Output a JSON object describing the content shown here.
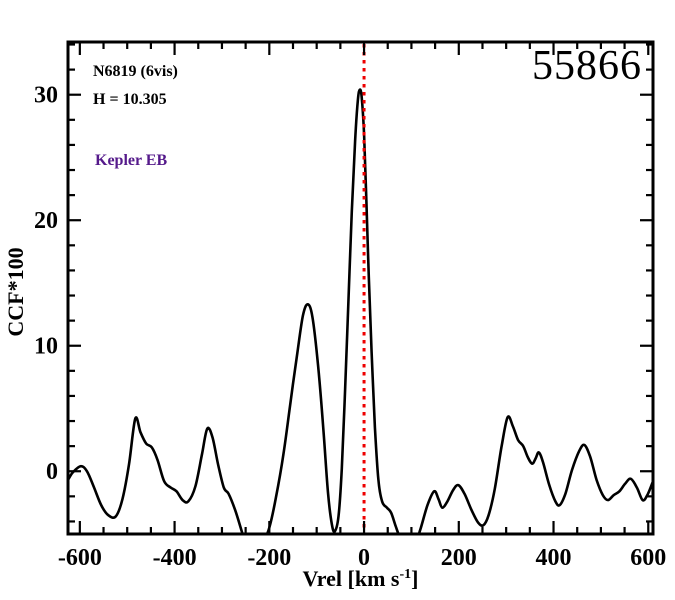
{
  "figure": {
    "background": "#ffffff",
    "frame_color": "#000000"
  },
  "annotations": {
    "target": "N6819 (6vis)",
    "h_mag": "H = 10.305",
    "classification": "Kepler EB",
    "classification_color": "#551a8b",
    "mjd": "55866"
  },
  "chart_data": {
    "type": "line",
    "title": "",
    "xlabel_main": "Vrel [km s",
    "xlabel_sup": "-1",
    "xlabel_end": "]",
    "ylabel": "CCF*100",
    "xlim": [
      -625,
      610
    ],
    "ylim": [
      -5,
      34.2
    ],
    "grid": false,
    "legend": "none",
    "x_major_ticks": [
      -600,
      -400,
      -200,
      0,
      200,
      400,
      600
    ],
    "x_minor_step": 50,
    "y_major_ticks": [
      0,
      10,
      20,
      30
    ],
    "y_minor_step": 2,
    "marker_line": {
      "x": 0,
      "color": "#ee0000",
      "style": "dotted"
    },
    "series": [
      {
        "name": "ccf",
        "color": "#000000",
        "points": [
          [
            -625,
            -0.7
          ],
          [
            -615,
            -0.1
          ],
          [
            -598,
            0.4
          ],
          [
            -585,
            0.0
          ],
          [
            -570,
            -1.3
          ],
          [
            -555,
            -2.7
          ],
          [
            -540,
            -3.5
          ],
          [
            -524,
            -3.6
          ],
          [
            -510,
            -2.2
          ],
          [
            -496,
            0.6
          ],
          [
            -483,
            4.2
          ],
          [
            -472,
            3.1
          ],
          [
            -460,
            2.2
          ],
          [
            -448,
            1.9
          ],
          [
            -436,
            0.9
          ],
          [
            -422,
            -0.8
          ],
          [
            -408,
            -1.3
          ],
          [
            -396,
            -1.6
          ],
          [
            -383,
            -2.3
          ],
          [
            -371,
            -2.4
          ],
          [
            -356,
            -1.2
          ],
          [
            -342,
            1.4
          ],
          [
            -331,
            3.4
          ],
          [
            -320,
            2.7
          ],
          [
            -308,
            0.5
          ],
          [
            -296,
            -1.3
          ],
          [
            -286,
            -1.8
          ],
          [
            -272,
            -3.1
          ],
          [
            -258,
            -4.8
          ],
          [
            -246,
            -6.2
          ],
          [
            -230,
            -7.0
          ],
          [
            -212,
            -5.6
          ],
          [
            -200,
            -4.5
          ],
          [
            -186,
            -2.1
          ],
          [
            -170,
            1.4
          ],
          [
            -156,
            5.3
          ],
          [
            -141,
            9.4
          ],
          [
            -129,
            12.4
          ],
          [
            -119,
            13.3
          ],
          [
            -109,
            12.3
          ],
          [
            -97,
            8.4
          ],
          [
            -86,
            3.4
          ],
          [
            -76,
            -1.8
          ],
          [
            -68,
            -4.2
          ],
          [
            -62,
            -4.8
          ],
          [
            -54,
            -3.6
          ],
          [
            -47,
            0.2
          ],
          [
            -40,
            6.5
          ],
          [
            -33,
            13.5
          ],
          [
            -26,
            20.5
          ],
          [
            -19,
            26.3
          ],
          [
            -13,
            29.6
          ],
          [
            -9,
            30.4
          ],
          [
            -5,
            29.8
          ],
          [
            0,
            26.8
          ],
          [
            5,
            21.5
          ],
          [
            10,
            15.5
          ],
          [
            16,
            9.5
          ],
          [
            23,
            3.5
          ],
          [
            30,
            -0.6
          ],
          [
            38,
            -2.4
          ],
          [
            48,
            -2.9
          ],
          [
            57,
            -3.3
          ],
          [
            67,
            -4.4
          ],
          [
            79,
            -5.6
          ],
          [
            93,
            -6.5
          ],
          [
            108,
            -5.8
          ],
          [
            120,
            -4.5
          ],
          [
            134,
            -2.7
          ],
          [
            148,
            -1.6
          ],
          [
            157,
            -2.2
          ],
          [
            165,
            -2.9
          ],
          [
            176,
            -2.4
          ],
          [
            188,
            -1.5
          ],
          [
            199,
            -1.1
          ],
          [
            212,
            -1.8
          ],
          [
            227,
            -3.1
          ],
          [
            241,
            -4.1
          ],
          [
            252,
            -4.3
          ],
          [
            263,
            -3.5
          ],
          [
            276,
            -1.4
          ],
          [
            290,
            1.9
          ],
          [
            303,
            4.3
          ],
          [
            314,
            3.6
          ],
          [
            325,
            2.5
          ],
          [
            336,
            2.0
          ],
          [
            346,
            1.1
          ],
          [
            355,
            0.6
          ],
          [
            362,
            1.0
          ],
          [
            369,
            1.5
          ],
          [
            378,
            0.7
          ],
          [
            391,
            -1.1
          ],
          [
            404,
            -2.4
          ],
          [
            413,
            -2.7
          ],
          [
            425,
            -1.8
          ],
          [
            439,
            0.1
          ],
          [
            454,
            1.6
          ],
          [
            465,
            2.1
          ],
          [
            477,
            1.2
          ],
          [
            491,
            -0.7
          ],
          [
            504,
            -1.9
          ],
          [
            515,
            -2.3
          ],
          [
            527,
            -1.9
          ],
          [
            539,
            -1.6
          ],
          [
            551,
            -1.0
          ],
          [
            563,
            -0.6
          ],
          [
            576,
            -1.3
          ],
          [
            588,
            -2.3
          ],
          [
            598,
            -1.9
          ],
          [
            610,
            -0.8
          ]
        ]
      }
    ]
  }
}
